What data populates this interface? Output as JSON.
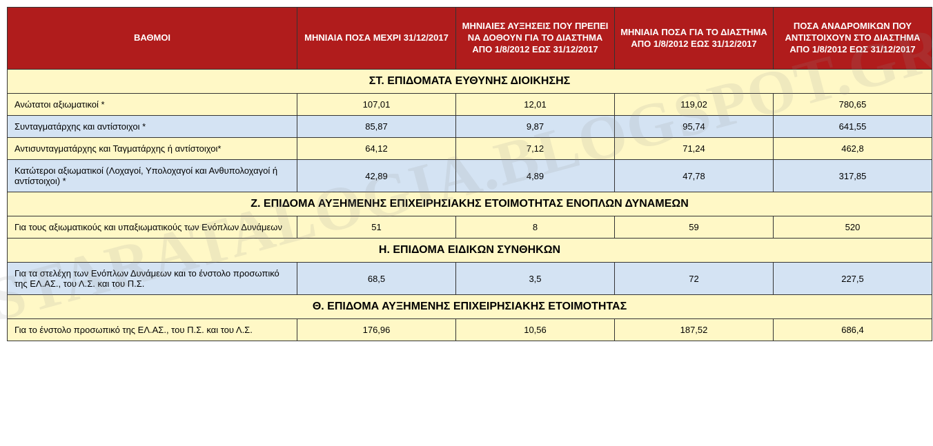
{
  "colors": {
    "header_bg": "#b01c1c",
    "header_text": "#ffffff",
    "row_yellow": "#fff8c6",
    "row_blue": "#d4e3f3",
    "border": "#333333",
    "watermark": "rgba(150,150,150,0.15)"
  },
  "watermark": "STARATALOGIA.BLOGSPOT.GR",
  "headers": [
    "ΒΑΘΜΟΙ",
    "ΜΗΝΙΑΙΑ ΠΟΣΑ ΜΕΧΡΙ 31/12/2017",
    "ΜΗΝΙΑΙΕΣ ΑΥΞΗΣΕΙΣ ΠΟΥ ΠΡΕΠΕΙ ΝΑ ΔΟΘΟΥΝ ΓΙΑ ΤΟ ΔΙΑΣΤΗΜΑ ΑΠΟ 1/8/2012 ΕΩΣ 31/12/2017",
    "ΜΗΝΙΑΙΑ ΠΟΣΑ ΓΙΑ ΤΟ ΔΙΑΣΤΗΜΑ ΑΠΟ 1/8/2012 ΕΩΣ 31/12/2017",
    "ΠΟΣΑ ΑΝΑΔΡΟΜΙΚΩΝ ΠΟΥ ΑΝΤΙΣΤΟΙΧΟΥΝ ΣΤΟ ΔΙΑΣΤΗΜΑ ΑΠΟ 1/8/2012 ΕΩΣ 31/12/2017"
  ],
  "sections": [
    {
      "title": "ΣΤ. ΕΠΙΔΟΜΑΤΑ ΕΥΘΥΝΗΣ ΔΙΟΙΚΗΣΗΣ",
      "rows": [
        {
          "color": "yellow",
          "label": "Ανώτατοι αξιωματικοί *",
          "v": [
            "107,01",
            "12,01",
            "119,02",
            "780,65"
          ]
        },
        {
          "color": "blue",
          "label": "Συνταγματάρχης και αντίστοιχοι *",
          "v": [
            "85,87",
            "9,87",
            "95,74",
            "641,55"
          ]
        },
        {
          "color": "yellow",
          "label": "Αντισυνταγματάρχης και Ταγματάρχης ή αντίστοιχοι*",
          "v": [
            "64,12",
            "7,12",
            "71,24",
            "462,8"
          ]
        },
        {
          "color": "blue",
          "label": "Κατώτεροι αξιωματικοί (Λοχαγοί, Υπολοχαγοί και Ανθυπολοχαγοί ή αντίστοιχοι) *",
          "v": [
            "42,89",
            "4,89",
            "47,78",
            "317,85"
          ]
        }
      ]
    },
    {
      "title": "Ζ. ΕΠΙΔΟΜΑ ΑΥΞΗΜΕΝΗΣ ΕΠΙΧΕΙΡΗΣΙΑΚΗΣ ΕΤΟΙΜΟΤΗΤΑΣ ΕΝΟΠΛΩΝ ΔΥΝΑΜΕΩΝ",
      "rows": [
        {
          "color": "yellow",
          "label": "Για τους αξιωματικούς και υπαξιωματικούς των Ενόπλων Δυνάμεων",
          "v": [
            "51",
            "8",
            "59",
            "520"
          ]
        }
      ]
    },
    {
      "title": "Η. ΕΠΙΔΟΜΑ ΕΙΔΙΚΩΝ ΣΥΝΘΗΚΩΝ",
      "rows": [
        {
          "color": "blue",
          "label": "Για τα στελέχη των Ενόπλων Δυνάμεων και το ένστολο προσωπικό της ΕΛ.ΑΣ., του Λ.Σ. και του Π.Σ.",
          "v": [
            "68,5",
            "3,5",
            "72",
            "227,5"
          ]
        }
      ]
    },
    {
      "title": "Θ. ΕΠΙΔΟΜΑ ΑΥΞΗΜΕΝΗΣ ΕΠΙΧΕΙΡΗΣΙΑΚΗΣ ΕΤΟΙΜΟΤΗΤΑΣ",
      "rows": [
        {
          "color": "yellow",
          "label": "Για το ένστολο προσωπικό της ΕΛ.ΑΣ., του Π.Σ. και του Λ.Σ.",
          "v": [
            "176,96",
            "10,56",
            "187,52",
            "686,4"
          ]
        }
      ]
    }
  ]
}
